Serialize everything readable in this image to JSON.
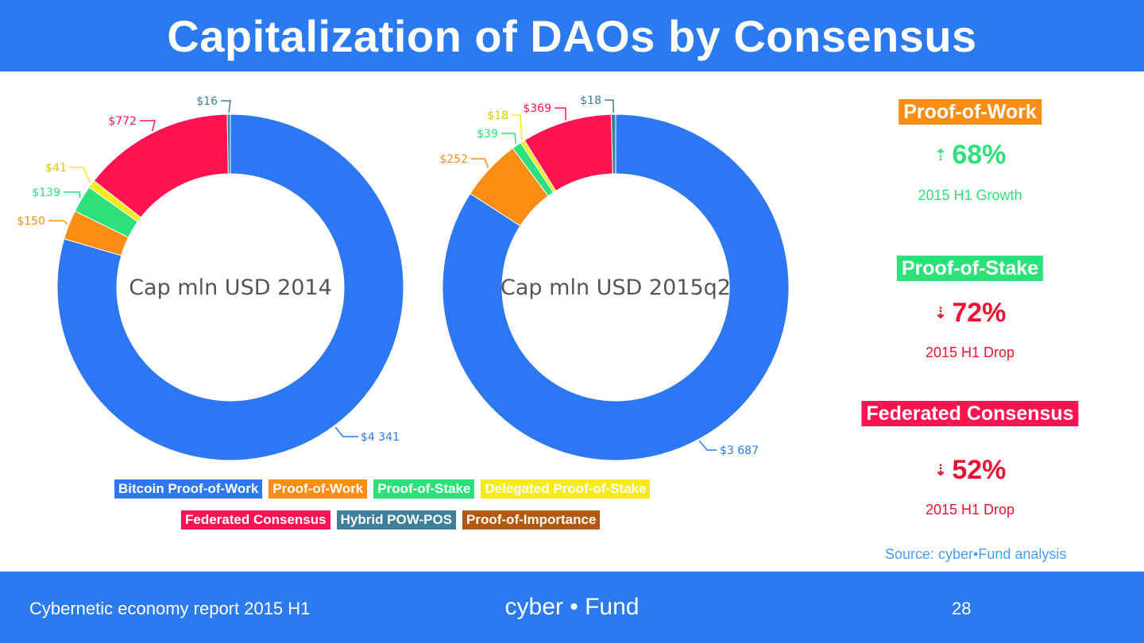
{
  "title": "Capitalization of DAOs by Consensus",
  "colors": {
    "bitcoin_pow": "#2d78f2",
    "pow": "#fb8c14",
    "pos": "#2ee07a",
    "dpos": "#f6ea1a",
    "federated": "#ff1351",
    "hybrid": "#3f7f99",
    "poi": "#b3580d"
  },
  "chart_data": [
    {
      "type": "pie",
      "center_label": "Cap mln USD 2014",
      "slices": [
        {
          "name": "Bitcoin Proof-of-Work",
          "label": "$4 341",
          "value": 4341
        },
        {
          "name": "Proof-of-Work",
          "label": "$150",
          "value": 150
        },
        {
          "name": "Proof-of-Stake",
          "label": "$139",
          "value": 139
        },
        {
          "name": "Delegated Proof-of-Stake",
          "label": "$41",
          "value": 41
        },
        {
          "name": "Federated Consensus",
          "label": "$772",
          "value": 772
        },
        {
          "name": "Hybrid POW-POS",
          "label": "$16",
          "value": 16
        }
      ]
    },
    {
      "type": "pie",
      "center_label": "Cap mln USD 2015q2",
      "slices": [
        {
          "name": "Bitcoin Proof-of-Work",
          "label": "$3 687",
          "value": 3687
        },
        {
          "name": "Proof-of-Work",
          "label": "$252",
          "value": 252
        },
        {
          "name": "Proof-of-Stake",
          "label": "$39",
          "value": 39
        },
        {
          "name": "Delegated Proof-of-Stake",
          "label": "$18",
          "value": 18
        },
        {
          "name": "Federated Consensus",
          "label": "$369",
          "value": 369
        },
        {
          "name": "Hybrid POW-POS",
          "label": "$18",
          "value": 18
        }
      ]
    }
  ],
  "legend": {
    "row1": [
      {
        "label": "Bitcoin Proof-of-Work",
        "color": "#2d78f2"
      },
      {
        "label": "Proof-of-Work",
        "color": "#fb8c14"
      },
      {
        "label": "Proof-of-Stake",
        "color": "#2ee07a"
      },
      {
        "label": "Delegated Proof-of-Stake",
        "color": "#f6ea1a"
      }
    ],
    "row2": [
      {
        "label": "Federated Consensus",
        "color": "#ff1351"
      },
      {
        "label": "Hybrid POW-POS",
        "color": "#3f7f99"
      },
      {
        "label": "Proof-of-Importance",
        "color": "#b3580d"
      }
    ]
  },
  "side": {
    "pow": {
      "label": "Proof-of-Work",
      "pct": "68%",
      "sub": "2015 H1 Growth",
      "direction": "up"
    },
    "pos": {
      "label": "Proof-of-Stake",
      "pct": "72%",
      "sub": "2015 H1 Drop",
      "direction": "down"
    },
    "fed": {
      "label": "Federated Consensus",
      "pct": "52%",
      "sub": "2015 H1 Drop",
      "direction": "down"
    }
  },
  "source": "Source: cyber•Fund analysis",
  "footer": {
    "left": "Cybernetic economy report 2015 H1",
    "brand": "cyber • Fund",
    "page": "28"
  }
}
